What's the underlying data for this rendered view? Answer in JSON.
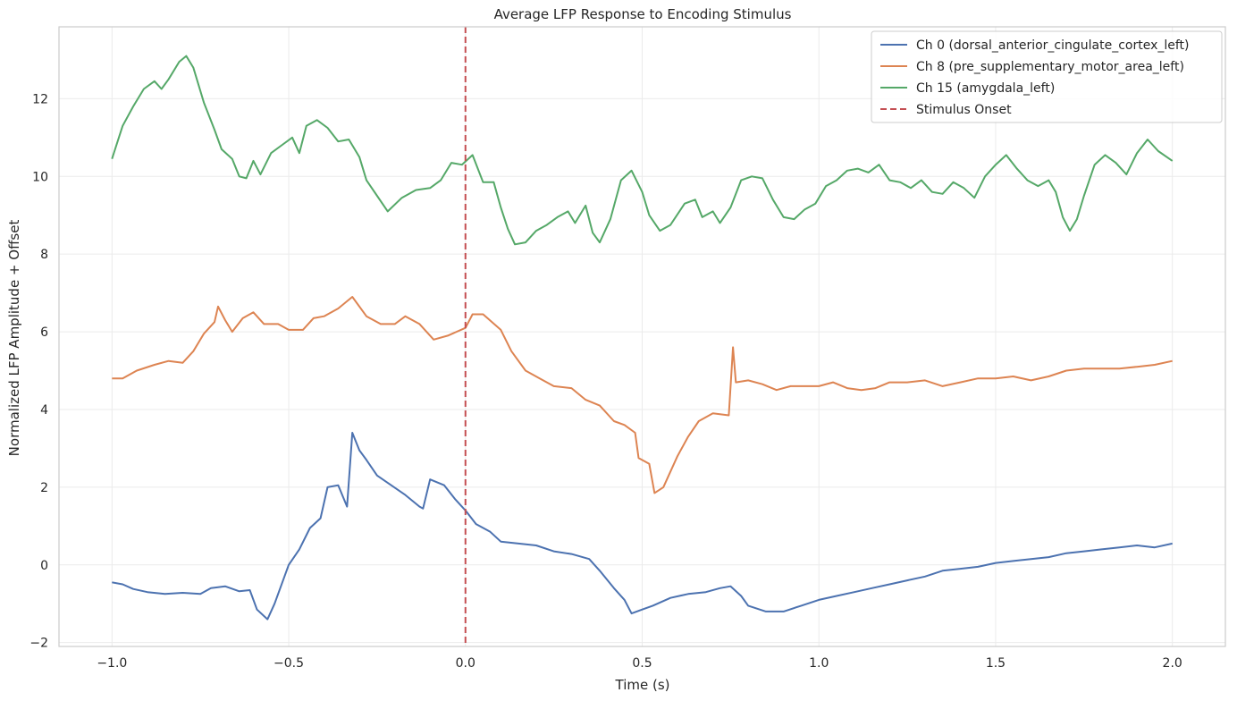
{
  "chart_data": {
    "type": "line",
    "title": "Average LFP Response to Encoding Stimulus",
    "xlabel": "Time (s)",
    "ylabel": "Normalized LFP Amplitude + Offset",
    "xlim": [
      -1.15,
      2.15
    ],
    "ylim": [
      -2.1,
      13.85
    ],
    "xticks": [
      -1.0,
      -0.5,
      0.0,
      0.5,
      1.0,
      1.5,
      2.0
    ],
    "xtick_labels": [
      "−1.0",
      "−0.5",
      "0.0",
      "0.5",
      "1.0",
      "1.5",
      "2.0"
    ],
    "yticks": [
      -2,
      0,
      2,
      4,
      6,
      8,
      10,
      12
    ],
    "ytick_labels": [
      "−2",
      "0",
      "2",
      "4",
      "6",
      "8",
      "10",
      "12"
    ],
    "grid": true,
    "legend_position": "top-right",
    "vline": {
      "x": 0.0,
      "label": "Stimulus Onset",
      "color": "#c44e52",
      "style": "dashed"
    },
    "series": [
      {
        "name": "Ch 0 (dorsal_anterior_cingulate_cortex_left)",
        "color": "#4c72b0",
        "points": [
          [
            -1.0,
            -0.45
          ],
          [
            -0.97,
            -0.5
          ],
          [
            -0.94,
            -0.62
          ],
          [
            -0.9,
            -0.7
          ],
          [
            -0.85,
            -0.75
          ],
          [
            -0.8,
            -0.72
          ],
          [
            -0.75,
            -0.75
          ],
          [
            -0.72,
            -0.6
          ],
          [
            -0.68,
            -0.55
          ],
          [
            -0.64,
            -0.68
          ],
          [
            -0.61,
            -0.65
          ],
          [
            -0.59,
            -1.15
          ],
          [
            -0.56,
            -1.4
          ],
          [
            -0.54,
            -1.0
          ],
          [
            -0.5,
            0.0
          ],
          [
            -0.47,
            0.4
          ],
          [
            -0.44,
            0.95
          ],
          [
            -0.41,
            1.2
          ],
          [
            -0.39,
            2.0
          ],
          [
            -0.36,
            2.05
          ],
          [
            -0.335,
            1.5
          ],
          [
            -0.32,
            3.4
          ],
          [
            -0.3,
            2.95
          ],
          [
            -0.28,
            2.7
          ],
          [
            -0.25,
            2.3
          ],
          [
            -0.21,
            2.05
          ],
          [
            -0.17,
            1.8
          ],
          [
            -0.13,
            1.5
          ],
          [
            -0.12,
            1.45
          ],
          [
            -0.1,
            2.2
          ],
          [
            -0.06,
            2.05
          ],
          [
            -0.03,
            1.7
          ],
          [
            0.0,
            1.4
          ],
          [
            0.03,
            1.05
          ],
          [
            0.07,
            0.85
          ],
          [
            0.1,
            0.6
          ],
          [
            0.15,
            0.55
          ],
          [
            0.2,
            0.5
          ],
          [
            0.25,
            0.35
          ],
          [
            0.3,
            0.28
          ],
          [
            0.35,
            0.15
          ],
          [
            0.38,
            -0.15
          ],
          [
            0.42,
            -0.6
          ],
          [
            0.45,
            -0.9
          ],
          [
            0.47,
            -1.25
          ],
          [
            0.5,
            -1.15
          ],
          [
            0.53,
            -1.05
          ],
          [
            0.58,
            -0.85
          ],
          [
            0.63,
            -0.75
          ],
          [
            0.68,
            -0.7
          ],
          [
            0.72,
            -0.6
          ],
          [
            0.75,
            -0.55
          ],
          [
            0.78,
            -0.8
          ],
          [
            0.8,
            -1.05
          ],
          [
            0.85,
            -1.2
          ],
          [
            0.9,
            -1.2
          ],
          [
            0.95,
            -1.05
          ],
          [
            1.0,
            -0.9
          ],
          [
            1.05,
            -0.8
          ],
          [
            1.1,
            -0.7
          ],
          [
            1.15,
            -0.6
          ],
          [
            1.2,
            -0.5
          ],
          [
            1.25,
            -0.4
          ],
          [
            1.3,
            -0.3
          ],
          [
            1.35,
            -0.15
          ],
          [
            1.4,
            -0.1
          ],
          [
            1.45,
            -0.05
          ],
          [
            1.5,
            0.05
          ],
          [
            1.55,
            0.1
          ],
          [
            1.6,
            0.15
          ],
          [
            1.65,
            0.2
          ],
          [
            1.7,
            0.3
          ],
          [
            1.75,
            0.35
          ],
          [
            1.8,
            0.4
          ],
          [
            1.85,
            0.45
          ],
          [
            1.9,
            0.5
          ],
          [
            1.95,
            0.45
          ],
          [
            2.0,
            0.55
          ]
        ]
      },
      {
        "name": "Ch 8 (pre_supplementary_motor_area_left)",
        "color": "#dd8452",
        "points": [
          [
            -1.0,
            4.8
          ],
          [
            -0.97,
            4.8
          ],
          [
            -0.93,
            5.0
          ],
          [
            -0.88,
            5.15
          ],
          [
            -0.84,
            5.25
          ],
          [
            -0.8,
            5.2
          ],
          [
            -0.77,
            5.5
          ],
          [
            -0.74,
            5.95
          ],
          [
            -0.71,
            6.25
          ],
          [
            -0.7,
            6.65
          ],
          [
            -0.68,
            6.3
          ],
          [
            -0.66,
            6.0
          ],
          [
            -0.63,
            6.35
          ],
          [
            -0.6,
            6.5
          ],
          [
            -0.57,
            6.2
          ],
          [
            -0.53,
            6.2
          ],
          [
            -0.5,
            6.05
          ],
          [
            -0.46,
            6.05
          ],
          [
            -0.43,
            6.35
          ],
          [
            -0.4,
            6.4
          ],
          [
            -0.36,
            6.6
          ],
          [
            -0.32,
            6.9
          ],
          [
            -0.28,
            6.4
          ],
          [
            -0.24,
            6.2
          ],
          [
            -0.2,
            6.2
          ],
          [
            -0.17,
            6.4
          ],
          [
            -0.13,
            6.2
          ],
          [
            -0.09,
            5.8
          ],
          [
            -0.05,
            5.9
          ],
          [
            0.0,
            6.1
          ],
          [
            0.02,
            6.45
          ],
          [
            0.05,
            6.45
          ],
          [
            0.1,
            6.05
          ],
          [
            0.13,
            5.5
          ],
          [
            0.17,
            5.0
          ],
          [
            0.21,
            4.8
          ],
          [
            0.25,
            4.6
          ],
          [
            0.3,
            4.55
          ],
          [
            0.34,
            4.25
          ],
          [
            0.38,
            4.1
          ],
          [
            0.42,
            3.7
          ],
          [
            0.45,
            3.6
          ],
          [
            0.48,
            3.4
          ],
          [
            0.49,
            2.75
          ],
          [
            0.52,
            2.6
          ],
          [
            0.535,
            1.85
          ],
          [
            0.56,
            2.0
          ],
          [
            0.6,
            2.8
          ],
          [
            0.63,
            3.3
          ],
          [
            0.66,
            3.7
          ],
          [
            0.7,
            3.9
          ],
          [
            0.745,
            3.85
          ],
          [
            0.757,
            5.6
          ],
          [
            0.765,
            4.7
          ],
          [
            0.8,
            4.75
          ],
          [
            0.84,
            4.65
          ],
          [
            0.88,
            4.5
          ],
          [
            0.92,
            4.6
          ],
          [
            0.96,
            4.6
          ],
          [
            1.0,
            4.6
          ],
          [
            1.04,
            4.7
          ],
          [
            1.08,
            4.55
          ],
          [
            1.12,
            4.5
          ],
          [
            1.16,
            4.55
          ],
          [
            1.2,
            4.7
          ],
          [
            1.25,
            4.7
          ],
          [
            1.3,
            4.75
          ],
          [
            1.35,
            4.6
          ],
          [
            1.4,
            4.7
          ],
          [
            1.45,
            4.8
          ],
          [
            1.5,
            4.8
          ],
          [
            1.55,
            4.85
          ],
          [
            1.6,
            4.75
          ],
          [
            1.65,
            4.85
          ],
          [
            1.7,
            5.0
          ],
          [
            1.75,
            5.05
          ],
          [
            1.8,
            5.05
          ],
          [
            1.85,
            5.05
          ],
          [
            1.9,
            5.1
          ],
          [
            1.95,
            5.15
          ],
          [
            2.0,
            5.25
          ]
        ]
      },
      {
        "name": "Ch 15 (amygdala_left)",
        "color": "#55a868",
        "points": [
          [
            -1.0,
            10.45
          ],
          [
            -0.97,
            11.3
          ],
          [
            -0.94,
            11.8
          ],
          [
            -0.91,
            12.25
          ],
          [
            -0.88,
            12.45
          ],
          [
            -0.86,
            12.25
          ],
          [
            -0.84,
            12.5
          ],
          [
            -0.81,
            12.95
          ],
          [
            -0.79,
            13.1
          ],
          [
            -0.77,
            12.8
          ],
          [
            -0.74,
            11.9
          ],
          [
            -0.71,
            11.2
          ],
          [
            -0.69,
            10.7
          ],
          [
            -0.66,
            10.45
          ],
          [
            -0.64,
            10.0
          ],
          [
            -0.62,
            9.95
          ],
          [
            -0.6,
            10.4
          ],
          [
            -0.58,
            10.05
          ],
          [
            -0.55,
            10.6
          ],
          [
            -0.52,
            10.8
          ],
          [
            -0.49,
            11.0
          ],
          [
            -0.47,
            10.6
          ],
          [
            -0.45,
            11.3
          ],
          [
            -0.42,
            11.45
          ],
          [
            -0.39,
            11.25
          ],
          [
            -0.36,
            10.9
          ],
          [
            -0.33,
            10.95
          ],
          [
            -0.3,
            10.5
          ],
          [
            -0.28,
            9.9
          ],
          [
            -0.25,
            9.5
          ],
          [
            -0.22,
            9.1
          ],
          [
            -0.18,
            9.45
          ],
          [
            -0.14,
            9.65
          ],
          [
            -0.1,
            9.7
          ],
          [
            -0.07,
            9.9
          ],
          [
            -0.04,
            10.35
          ],
          [
            -0.01,
            10.3
          ],
          [
            0.02,
            10.55
          ],
          [
            0.05,
            9.85
          ],
          [
            0.08,
            9.85
          ],
          [
            0.1,
            9.2
          ],
          [
            0.12,
            8.65
          ],
          [
            0.14,
            8.25
          ],
          [
            0.17,
            8.3
          ],
          [
            0.2,
            8.6
          ],
          [
            0.23,
            8.75
          ],
          [
            0.26,
            8.95
          ],
          [
            0.29,
            9.1
          ],
          [
            0.31,
            8.8
          ],
          [
            0.34,
            9.25
          ],
          [
            0.36,
            8.55
          ],
          [
            0.38,
            8.3
          ],
          [
            0.41,
            8.9
          ],
          [
            0.44,
            9.9
          ],
          [
            0.47,
            10.15
          ],
          [
            0.5,
            9.6
          ],
          [
            0.52,
            9.0
          ],
          [
            0.55,
            8.6
          ],
          [
            0.58,
            8.75
          ],
          [
            0.62,
            9.3
          ],
          [
            0.65,
            9.4
          ],
          [
            0.67,
            8.95
          ],
          [
            0.7,
            9.1
          ],
          [
            0.72,
            8.8
          ],
          [
            0.75,
            9.2
          ],
          [
            0.78,
            9.9
          ],
          [
            0.81,
            10.0
          ],
          [
            0.84,
            9.95
          ],
          [
            0.87,
            9.4
          ],
          [
            0.9,
            8.95
          ],
          [
            0.93,
            8.9
          ],
          [
            0.96,
            9.15
          ],
          [
            0.99,
            9.3
          ],
          [
            1.02,
            9.75
          ],
          [
            1.05,
            9.9
          ],
          [
            1.08,
            10.15
          ],
          [
            1.11,
            10.2
          ],
          [
            1.14,
            10.1
          ],
          [
            1.17,
            10.3
          ],
          [
            1.2,
            9.9
          ],
          [
            1.23,
            9.85
          ],
          [
            1.26,
            9.7
          ],
          [
            1.29,
            9.9
          ],
          [
            1.32,
            9.6
          ],
          [
            1.35,
            9.55
          ],
          [
            1.38,
            9.85
          ],
          [
            1.41,
            9.7
          ],
          [
            1.44,
            9.45
          ],
          [
            1.47,
            10.0
          ],
          [
            1.5,
            10.3
          ],
          [
            1.53,
            10.55
          ],
          [
            1.56,
            10.2
          ],
          [
            1.59,
            9.9
          ],
          [
            1.62,
            9.75
          ],
          [
            1.65,
            9.9
          ],
          [
            1.67,
            9.6
          ],
          [
            1.69,
            8.95
          ],
          [
            1.71,
            8.6
          ],
          [
            1.73,
            8.9
          ],
          [
            1.75,
            9.5
          ],
          [
            1.78,
            10.3
          ],
          [
            1.81,
            10.55
          ],
          [
            1.84,
            10.35
          ],
          [
            1.87,
            10.05
          ],
          [
            1.9,
            10.6
          ],
          [
            1.93,
            10.95
          ],
          [
            1.96,
            10.65
          ],
          [
            2.0,
            10.4
          ]
        ]
      }
    ]
  }
}
